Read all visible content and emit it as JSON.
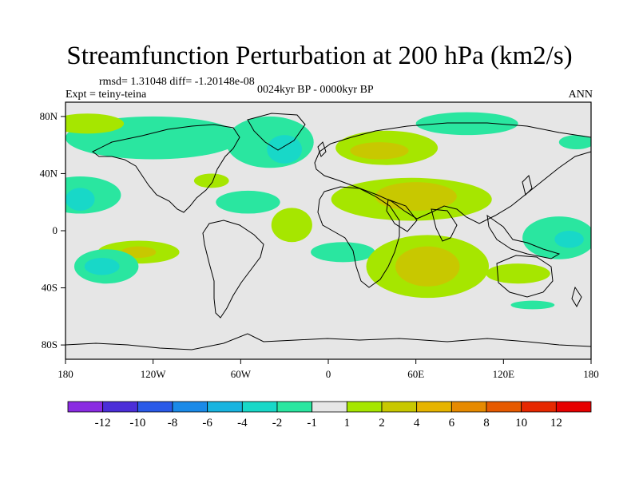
{
  "title": "Streamfunction Perturbation at 200 hPa (km2/s)",
  "stats": "rmsd= 1.31048 diff= -1.20148e-08",
  "experiment": "Expt = teiny-teina",
  "period": "0024kyr BP - 0000kyr BP",
  "season": "ANN",
  "map": {
    "lon_labels": [
      "180",
      "120W",
      "60W",
      "0",
      "60E",
      "120E",
      "180"
    ],
    "lat_labels": [
      "80N",
      "40N",
      "0",
      "40S",
      "80S"
    ],
    "background_color": "#e6e6e6",
    "regions": [
      {
        "sign": "neg",
        "level": "-1",
        "color": "#2ae6a0",
        "lon": -120,
        "lat": 65,
        "rx": 60,
        "ry": 15
      },
      {
        "sign": "neg",
        "level": "-1",
        "color": "#2ae6a0",
        "lon": -40,
        "lat": 62,
        "rx": 30,
        "ry": 18
      },
      {
        "sign": "neg",
        "level": "-2",
        "color": "#18d8c8",
        "lon": -30,
        "lat": 57,
        "rx": 12,
        "ry": 10
      },
      {
        "sign": "pos",
        "level": "1",
        "color": "#a6e600",
        "lon": -165,
        "lat": 75,
        "rx": 25,
        "ry": 7
      },
      {
        "sign": "pos",
        "level": "1",
        "color": "#a6e600",
        "lon": 40,
        "lat": 58,
        "rx": 35,
        "ry": 12
      },
      {
        "sign": "pos",
        "level": "2",
        "color": "#c8c800",
        "lon": 35,
        "lat": 56,
        "rx": 20,
        "ry": 6
      },
      {
        "sign": "neg",
        "level": "-1",
        "color": "#2ae6a0",
        "lon": 95,
        "lat": 75,
        "rx": 35,
        "ry": 8
      },
      {
        "sign": "pos",
        "level": "1",
        "color": "#a6e600",
        "lon": 57,
        "lat": 22,
        "rx": 55,
        "ry": 15
      },
      {
        "sign": "pos",
        "level": "2",
        "color": "#c8c800",
        "lon": 60,
        "lat": 24,
        "rx": 28,
        "ry": 10
      },
      {
        "sign": "neg",
        "level": "-1",
        "color": "#2ae6a0",
        "lon": -170,
        "lat": 25,
        "rx": 28,
        "ry": 13
      },
      {
        "sign": "neg",
        "level": "-2",
        "color": "#18d8c8",
        "lon": -170,
        "lat": 22,
        "rx": 10,
        "ry": 8
      },
      {
        "sign": "neg",
        "level": "-1",
        "color": "#2ae6a0",
        "lon": -55,
        "lat": 20,
        "rx": 22,
        "ry": 8
      },
      {
        "sign": "pos",
        "level": "1",
        "color": "#a6e600",
        "lon": -80,
        "lat": 35,
        "rx": 12,
        "ry": 5
      },
      {
        "sign": "pos",
        "level": "1",
        "color": "#a6e600",
        "lon": -25,
        "lat": 4,
        "rx": 14,
        "ry": 12
      },
      {
        "sign": "pos",
        "level": "1",
        "color": "#a6e600",
        "lon": -130,
        "lat": -15,
        "rx": 28,
        "ry": 8
      },
      {
        "sign": "pos",
        "level": "2",
        "color": "#c8c800",
        "lon": -130,
        "lat": -15,
        "rx": 12,
        "ry": 4
      },
      {
        "sign": "neg",
        "level": "-1",
        "color": "#2ae6a0",
        "lon": -152,
        "lat": -25,
        "rx": 22,
        "ry": 12
      },
      {
        "sign": "neg",
        "level": "-2",
        "color": "#18d8c8",
        "lon": -155,
        "lat": -25,
        "rx": 12,
        "ry": 6
      },
      {
        "sign": "neg",
        "level": "-1",
        "color": "#2ae6a0",
        "lon": 10,
        "lat": -15,
        "rx": 22,
        "ry": 7
      },
      {
        "sign": "pos",
        "level": "1",
        "color": "#a6e600",
        "lon": 68,
        "lat": -25,
        "rx": 42,
        "ry": 22
      },
      {
        "sign": "pos",
        "level": "2",
        "color": "#c8c800",
        "lon": 68,
        "lat": -25,
        "rx": 22,
        "ry": 14
      },
      {
        "sign": "neg",
        "level": "-1",
        "color": "#2ae6a0",
        "lon": 158,
        "lat": -5,
        "rx": 25,
        "ry": 15
      },
      {
        "sign": "neg",
        "level": "-2",
        "color": "#18d8c8",
        "lon": 165,
        "lat": -6,
        "rx": 10,
        "ry": 6
      },
      {
        "sign": "pos",
        "level": "1",
        "color": "#a6e600",
        "lon": 130,
        "lat": -30,
        "rx": 22,
        "ry": 7
      },
      {
        "sign": "neg",
        "level": "-1",
        "color": "#2ae6a0",
        "lon": 140,
        "lat": -52,
        "rx": 15,
        "ry": 3
      },
      {
        "sign": "neg",
        "level": "-1",
        "color": "#2ae6a0",
        "lon": 170,
        "lat": 62,
        "rx": 12,
        "ry": 5
      }
    ]
  },
  "colorbar": {
    "labels": [
      "-12",
      "-10",
      "-8",
      "-6",
      "-4",
      "-2",
      "-1",
      "1",
      "2",
      "4",
      "6",
      "8",
      "10",
      "12"
    ],
    "colors": [
      "#8a2be2",
      "#4b2ed8",
      "#2a5ae8",
      "#1a8ae8",
      "#18b4e0",
      "#18d8c8",
      "#2ae6a0",
      "#e6e6e6",
      "#a6e600",
      "#c8c800",
      "#e6b400",
      "#e68a00",
      "#e65a00",
      "#e62800",
      "#e60000"
    ]
  }
}
